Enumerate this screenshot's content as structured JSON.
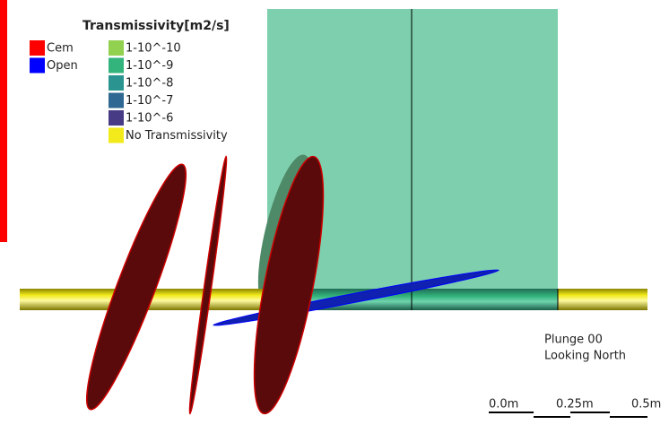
{
  "legend": {
    "title": "Transmissivity[m2/s]",
    "state_items": [
      {
        "label": "Cem",
        "color": "#ff0000"
      },
      {
        "label": "Open",
        "color": "#0000ff"
      }
    ],
    "transmissivity_items": [
      {
        "label": "1-10^-10",
        "color": "#92d050"
      },
      {
        "label": "1-10^-9",
        "color": "#33b47c"
      },
      {
        "label": "1-10^-8",
        "color": "#2a9590"
      },
      {
        "label": "1-10^-7",
        "color": "#2f6892"
      },
      {
        "label": "1-10^-6",
        "color": "#483b86"
      },
      {
        "label": "No Transmissivity",
        "color": "#f2ea1a"
      }
    ]
  },
  "view": {
    "plunge": "Plunge 00",
    "direction": "Looking North"
  },
  "scale_bar": {
    "labels": [
      "0.0m",
      "0.25m",
      "0.5m"
    ]
  }
}
